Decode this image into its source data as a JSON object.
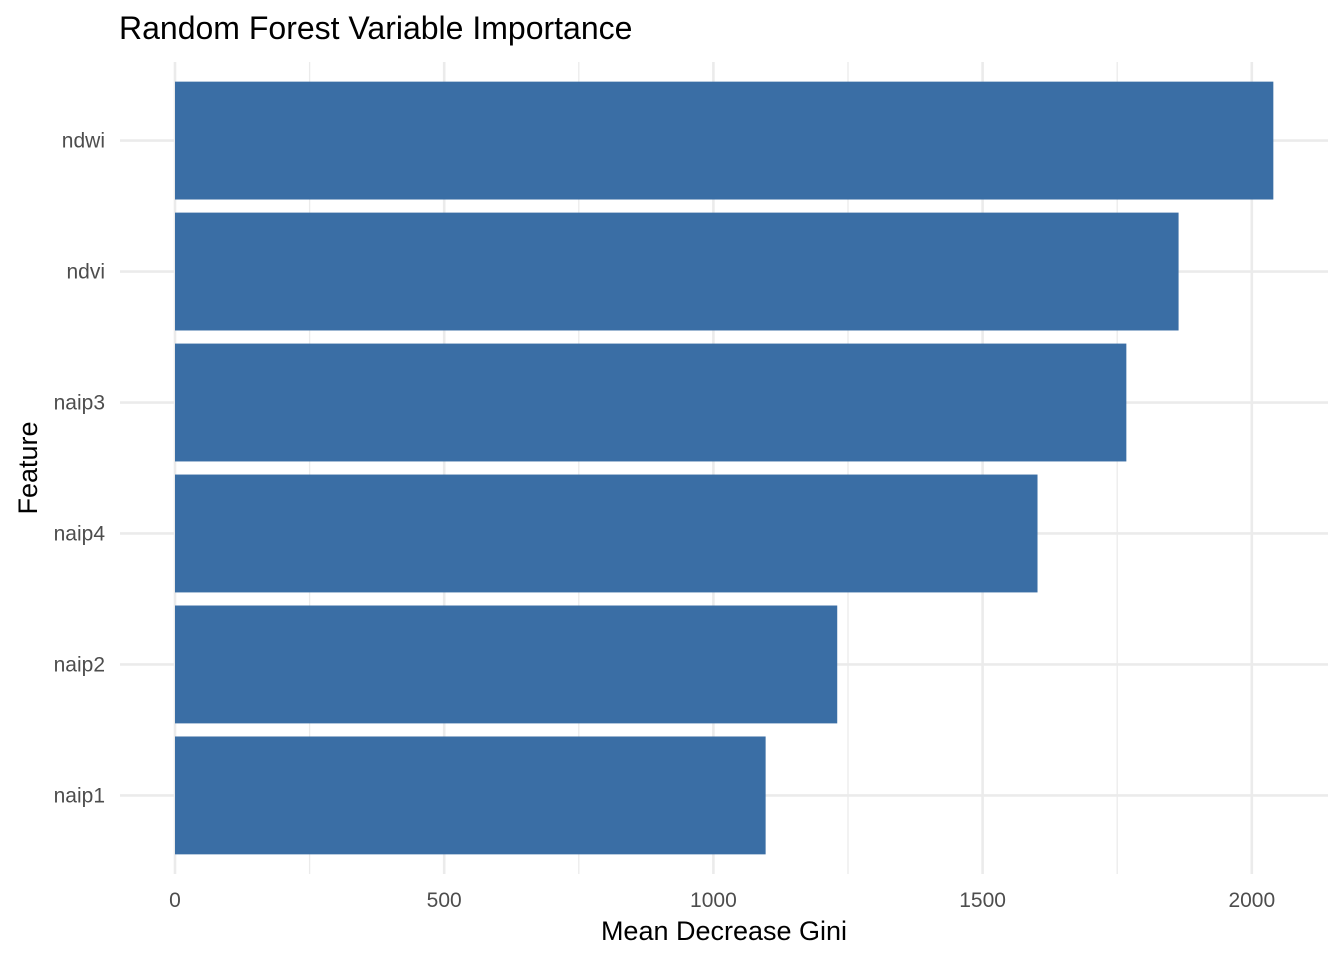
{
  "chart_data": {
    "type": "bar",
    "orientation": "horizontal",
    "title": "Random Forest Variable Importance",
    "xlabel": "Mean Decrease Gini",
    "ylabel": "Feature",
    "categories": [
      "ndwi",
      "ndvi",
      "naip3",
      "naip4",
      "naip2",
      "naip1"
    ],
    "values": [
      2040,
      1864,
      1767,
      1602,
      1230,
      1097
    ],
    "xlim": [
      0,
      2100
    ],
    "x_ticks": [
      0,
      500,
      1000,
      1500,
      2000
    ],
    "x_tick_labels": [
      "0",
      "500",
      "1000",
      "1500",
      "2000"
    ],
    "grid": true,
    "legend": "none",
    "theme": "minimal",
    "bar_color": "#3A6EA5",
    "grid_color": "#EBEBEB"
  }
}
